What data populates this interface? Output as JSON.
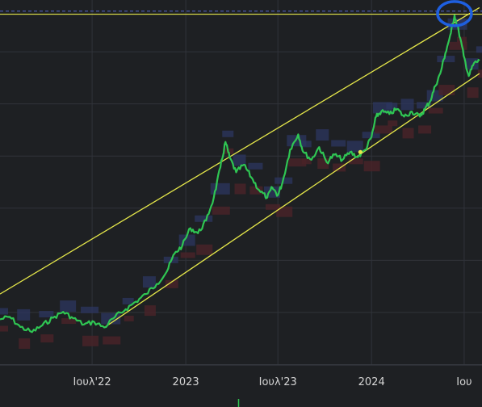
{
  "chart_data": {
    "type": "line",
    "xlabel": "",
    "ylabel": "",
    "x_ticks": [
      "Ιουλ'22",
      "2023",
      "Ιουλ'23",
      "2024",
      "Ιου"
    ],
    "x_tick_dates": [
      "2022-07-01",
      "2023-01-01",
      "2023-07-01",
      "2024-01-01",
      "2024-07-01"
    ],
    "grid": true,
    "colors": {
      "price_line": "#2fc653",
      "channel_line": "#e6e84a",
      "dashed_level": "#5061b8",
      "highlight_circle": "#1e5fe0",
      "overlay_blue": "#2c3660",
      "overlay_red": "#4a2328",
      "background": "#1e2023",
      "grid": "#30333a"
    },
    "price_series": [
      [
        "2022-01-01",
        40.0
      ],
      [
        "2022-01-20",
        40.5
      ],
      [
        "2022-02-10",
        38.5
      ],
      [
        "2022-03-05",
        37.5
      ],
      [
        "2022-03-25",
        38.8
      ],
      [
        "2022-04-15",
        40.3
      ],
      [
        "2022-05-05",
        41.5
      ],
      [
        "2022-05-25",
        40.2
      ],
      [
        "2022-06-15",
        39.0
      ],
      [
        "2022-07-05",
        39.5
      ],
      [
        "2022-07-25",
        38.4
      ],
      [
        "2022-08-15",
        40.5
      ],
      [
        "2022-09-05",
        42.0
      ],
      [
        "2022-09-25",
        43.5
      ],
      [
        "2022-10-15",
        45.0
      ],
      [
        "2022-11-05",
        47.0
      ],
      [
        "2022-11-25",
        49.5
      ],
      [
        "2022-12-10",
        53.0
      ],
      [
        "2022-12-25",
        54.5
      ],
      [
        "2023-01-10",
        58.0
      ],
      [
        "2023-01-25",
        57.0
      ],
      [
        "2023-02-10",
        59.5
      ],
      [
        "2023-02-25",
        64.0
      ],
      [
        "2023-03-10",
        70.0
      ],
      [
        "2023-03-20",
        75.0
      ],
      [
        "2023-03-28",
        72.0
      ],
      [
        "2023-04-10",
        69.0
      ],
      [
        "2023-04-25",
        70.5
      ],
      [
        "2023-05-10",
        68.0
      ],
      [
        "2023-05-25",
        65.5
      ],
      [
        "2023-06-10",
        64.0
      ],
      [
        "2023-06-20",
        66.0
      ],
      [
        "2023-07-01",
        64.5
      ],
      [
        "2023-07-10",
        67.0
      ],
      [
        "2023-07-25",
        73.5
      ],
      [
        "2023-08-10",
        76.5
      ],
      [
        "2023-08-20",
        73.0
      ],
      [
        "2023-09-05",
        71.5
      ],
      [
        "2023-09-20",
        74.0
      ],
      [
        "2023-10-05",
        71.0
      ],
      [
        "2023-10-20",
        72.5
      ],
      [
        "2023-11-05",
        71.5
      ],
      [
        "2023-11-20",
        73.0
      ],
      [
        "2023-12-05",
        72.0
      ],
      [
        "2023-12-20",
        73.5
      ],
      [
        "2024-01-01",
        76.0
      ],
      [
        "2024-01-10",
        80.0
      ],
      [
        "2024-01-20",
        81.0
      ],
      [
        "2024-02-05",
        80.5
      ],
      [
        "2024-02-20",
        81.5
      ],
      [
        "2024-03-05",
        80.0
      ],
      [
        "2024-03-20",
        81.0
      ],
      [
        "2024-04-05",
        80.0
      ],
      [
        "2024-04-15",
        81.5
      ],
      [
        "2024-04-25",
        83.0
      ],
      [
        "2024-05-05",
        86.0
      ],
      [
        "2024-05-15",
        88.5
      ],
      [
        "2024-05-25",
        92.5
      ],
      [
        "2024-06-05",
        96.5
      ],
      [
        "2024-06-12",
        100.0
      ],
      [
        "2024-06-20",
        97.0
      ],
      [
        "2024-06-30",
        92.0
      ],
      [
        "2024-07-10",
        88.0
      ],
      [
        "2024-07-20",
        90.5
      ],
      [
        "2024-07-31",
        91.0
      ]
    ],
    "channel_upper": [
      [
        "2022-01-01",
        45.0
      ],
      [
        "2024-07-31",
        101.5
      ]
    ],
    "channel_lower": [
      [
        "2022-07-25",
        38.4
      ],
      [
        "2024-07-31",
        88.5
      ]
    ],
    "dashed_level": 100.8,
    "solid_level": 100.2,
    "marker_point": [
      "2023-12-10",
      73.0
    ],
    "ylim": [
      31,
      103
    ],
    "xlim": [
      "2022-01-01",
      "2024-08-05"
    ]
  }
}
